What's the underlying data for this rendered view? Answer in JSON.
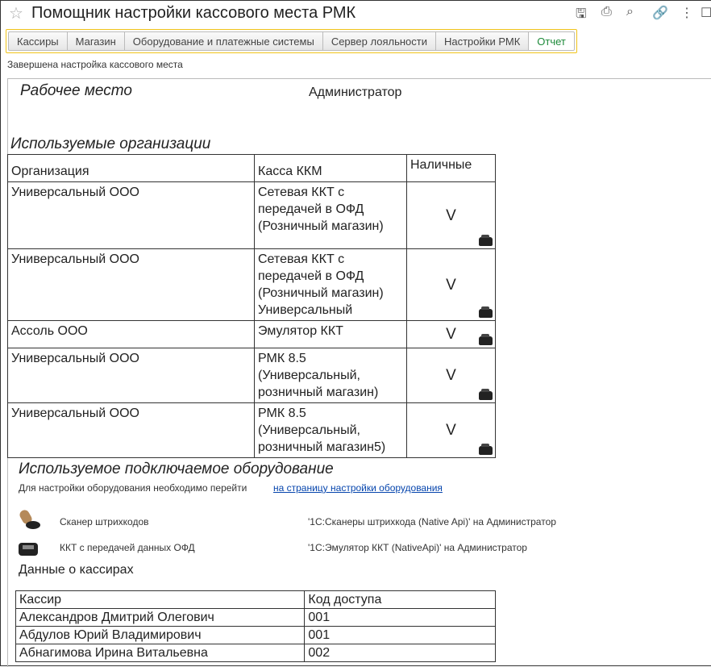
{
  "window": {
    "title": "Помощник настройки кассового места РМК"
  },
  "toolbar": {
    "icons": [
      "save-icon",
      "print-icon",
      "preview-icon",
      "link-icon",
      "more-icon",
      "maximize-icon"
    ]
  },
  "tabs": [
    {
      "label": "Кассиры"
    },
    {
      "label": "Магазин"
    },
    {
      "label": "Оборудование и платежные системы"
    },
    {
      "label": "Сервер лояльности"
    },
    {
      "label": "Настройки РМК"
    },
    {
      "label": "Отчет",
      "active": true
    }
  ],
  "status": "Завершена настройка кассового места",
  "report": {
    "workplace_label": "Рабочее место",
    "workplace_value": "Администратор",
    "orgs_heading": "Используемые организации",
    "orgs_table": {
      "headers": [
        "Организация",
        "Касса ККМ",
        "Наличные"
      ],
      "rows": [
        {
          "org": "Универсальный ООО",
          "kkm": "Сетевая ККТ с передачей в ОФД (Розничный магазин)",
          "cash": "V"
        },
        {
          "org": "Универсальный ООО",
          "kkm": "Сетевая ККТ с передачей в ОФД (Розничный магазин) Универсальный",
          "cash": "V"
        },
        {
          "org": "Ассоль ООО",
          "kkm": "Эмулятор ККТ",
          "cash": "V"
        },
        {
          "org": "Универсальный ООО",
          "kkm": "РМК 8.5 (Универсальный, розничный магазин)",
          "cash": "V"
        },
        {
          "org": "Универсальный ООО",
          "kkm": "РМК 8.5 (Универсальный, розничный магазин5)",
          "cash": "V"
        }
      ]
    },
    "equipment_heading": "Используемое подключаемое оборудование",
    "equipment_note": "Для настройки оборудования необходимо перейти",
    "equipment_link": "на страницу настройки оборудования",
    "equipment": [
      {
        "type": "Сканер штрихкодов",
        "value": "'1С:Сканеры штрихкода (Native Api)' на Администратор",
        "icon": "barcode-scanner-icon"
      },
      {
        "type": "ККТ с передачей данных ОФД",
        "value": "'1С:Эмулятор ККТ (NativeApi)' на Администратор",
        "icon": "cash-register-icon"
      }
    ],
    "cashiers_heading": "Данные о кассирах",
    "cashiers_table": {
      "headers": [
        "Кассир",
        "Код доступа"
      ],
      "rows": [
        {
          "name": "Александров Дмитрий Олегович",
          "code": "001"
        },
        {
          "name": "Абдулов Юрий Владимирович",
          "code": "001"
        },
        {
          "name": "Абнагимова Ирина Витальевна",
          "code": "002"
        }
      ]
    }
  }
}
